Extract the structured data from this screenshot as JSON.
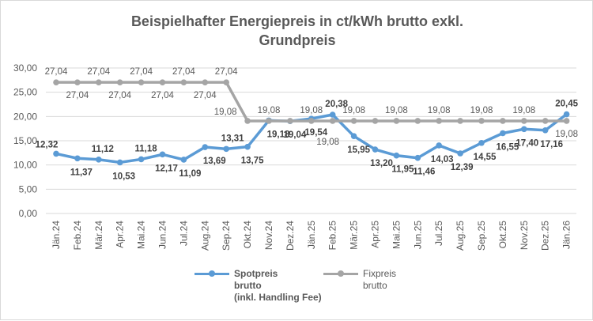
{
  "chart_data": {
    "type": "line",
    "title": "Beispielhafter Energiepreis in ct/kWh brutto exkl. Grundpreis",
    "categories": [
      "Jän.24",
      "Feb.24",
      "Mär.24",
      "Apr.24",
      "Mai.24",
      "Jun.24",
      "Jul.24",
      "Aug.24",
      "Sep.24",
      "Okt.24",
      "Nov.24",
      "Dez.24",
      "Jän.25",
      "Feb.25",
      "Mär.25",
      "Apr.25",
      "Mai.25",
      "Jun.25",
      "Jul.25",
      "Aug.25",
      "Sep.25",
      "Okt.25",
      "Nov.25",
      "Dez.25",
      "Jän.26"
    ],
    "ylim": [
      0,
      30
    ],
    "yticks": [
      "0,00",
      "5,00",
      "10,00",
      "15,00",
      "20,00",
      "25,00",
      "30,00"
    ],
    "grid": true,
    "legend": "bottom",
    "series": [
      {
        "name": "Spotpreis brutto (inkl. Handling Fee)",
        "name_lines": [
          "Spotpreis",
          "brutto",
          "(inkl. Handling Fee)"
        ],
        "color": "#5b9bd5",
        "values": [
          12.32,
          11.37,
          11.12,
          10.53,
          11.18,
          12.17,
          11.09,
          13.69,
          13.31,
          13.75,
          19.18,
          19.04,
          19.54,
          20.38,
          15.95,
          13.2,
          11.95,
          11.46,
          14.03,
          12.39,
          14.55,
          16.55,
          17.4,
          17.16,
          20.45
        ]
      },
      {
        "name": "Fixpreis brutto",
        "name_lines": [
          "Fixpreis",
          "brutto"
        ],
        "color": "#a5a5a5",
        "values": [
          27.04,
          27.04,
          27.04,
          27.04,
          27.04,
          27.04,
          27.04,
          27.04,
          27.04,
          19.08,
          19.08,
          19.08,
          19.08,
          19.08,
          19.08,
          19.08,
          19.08,
          19.08,
          19.08,
          19.08,
          19.08,
          19.08,
          19.08,
          19.08,
          19.08
        ]
      }
    ]
  }
}
